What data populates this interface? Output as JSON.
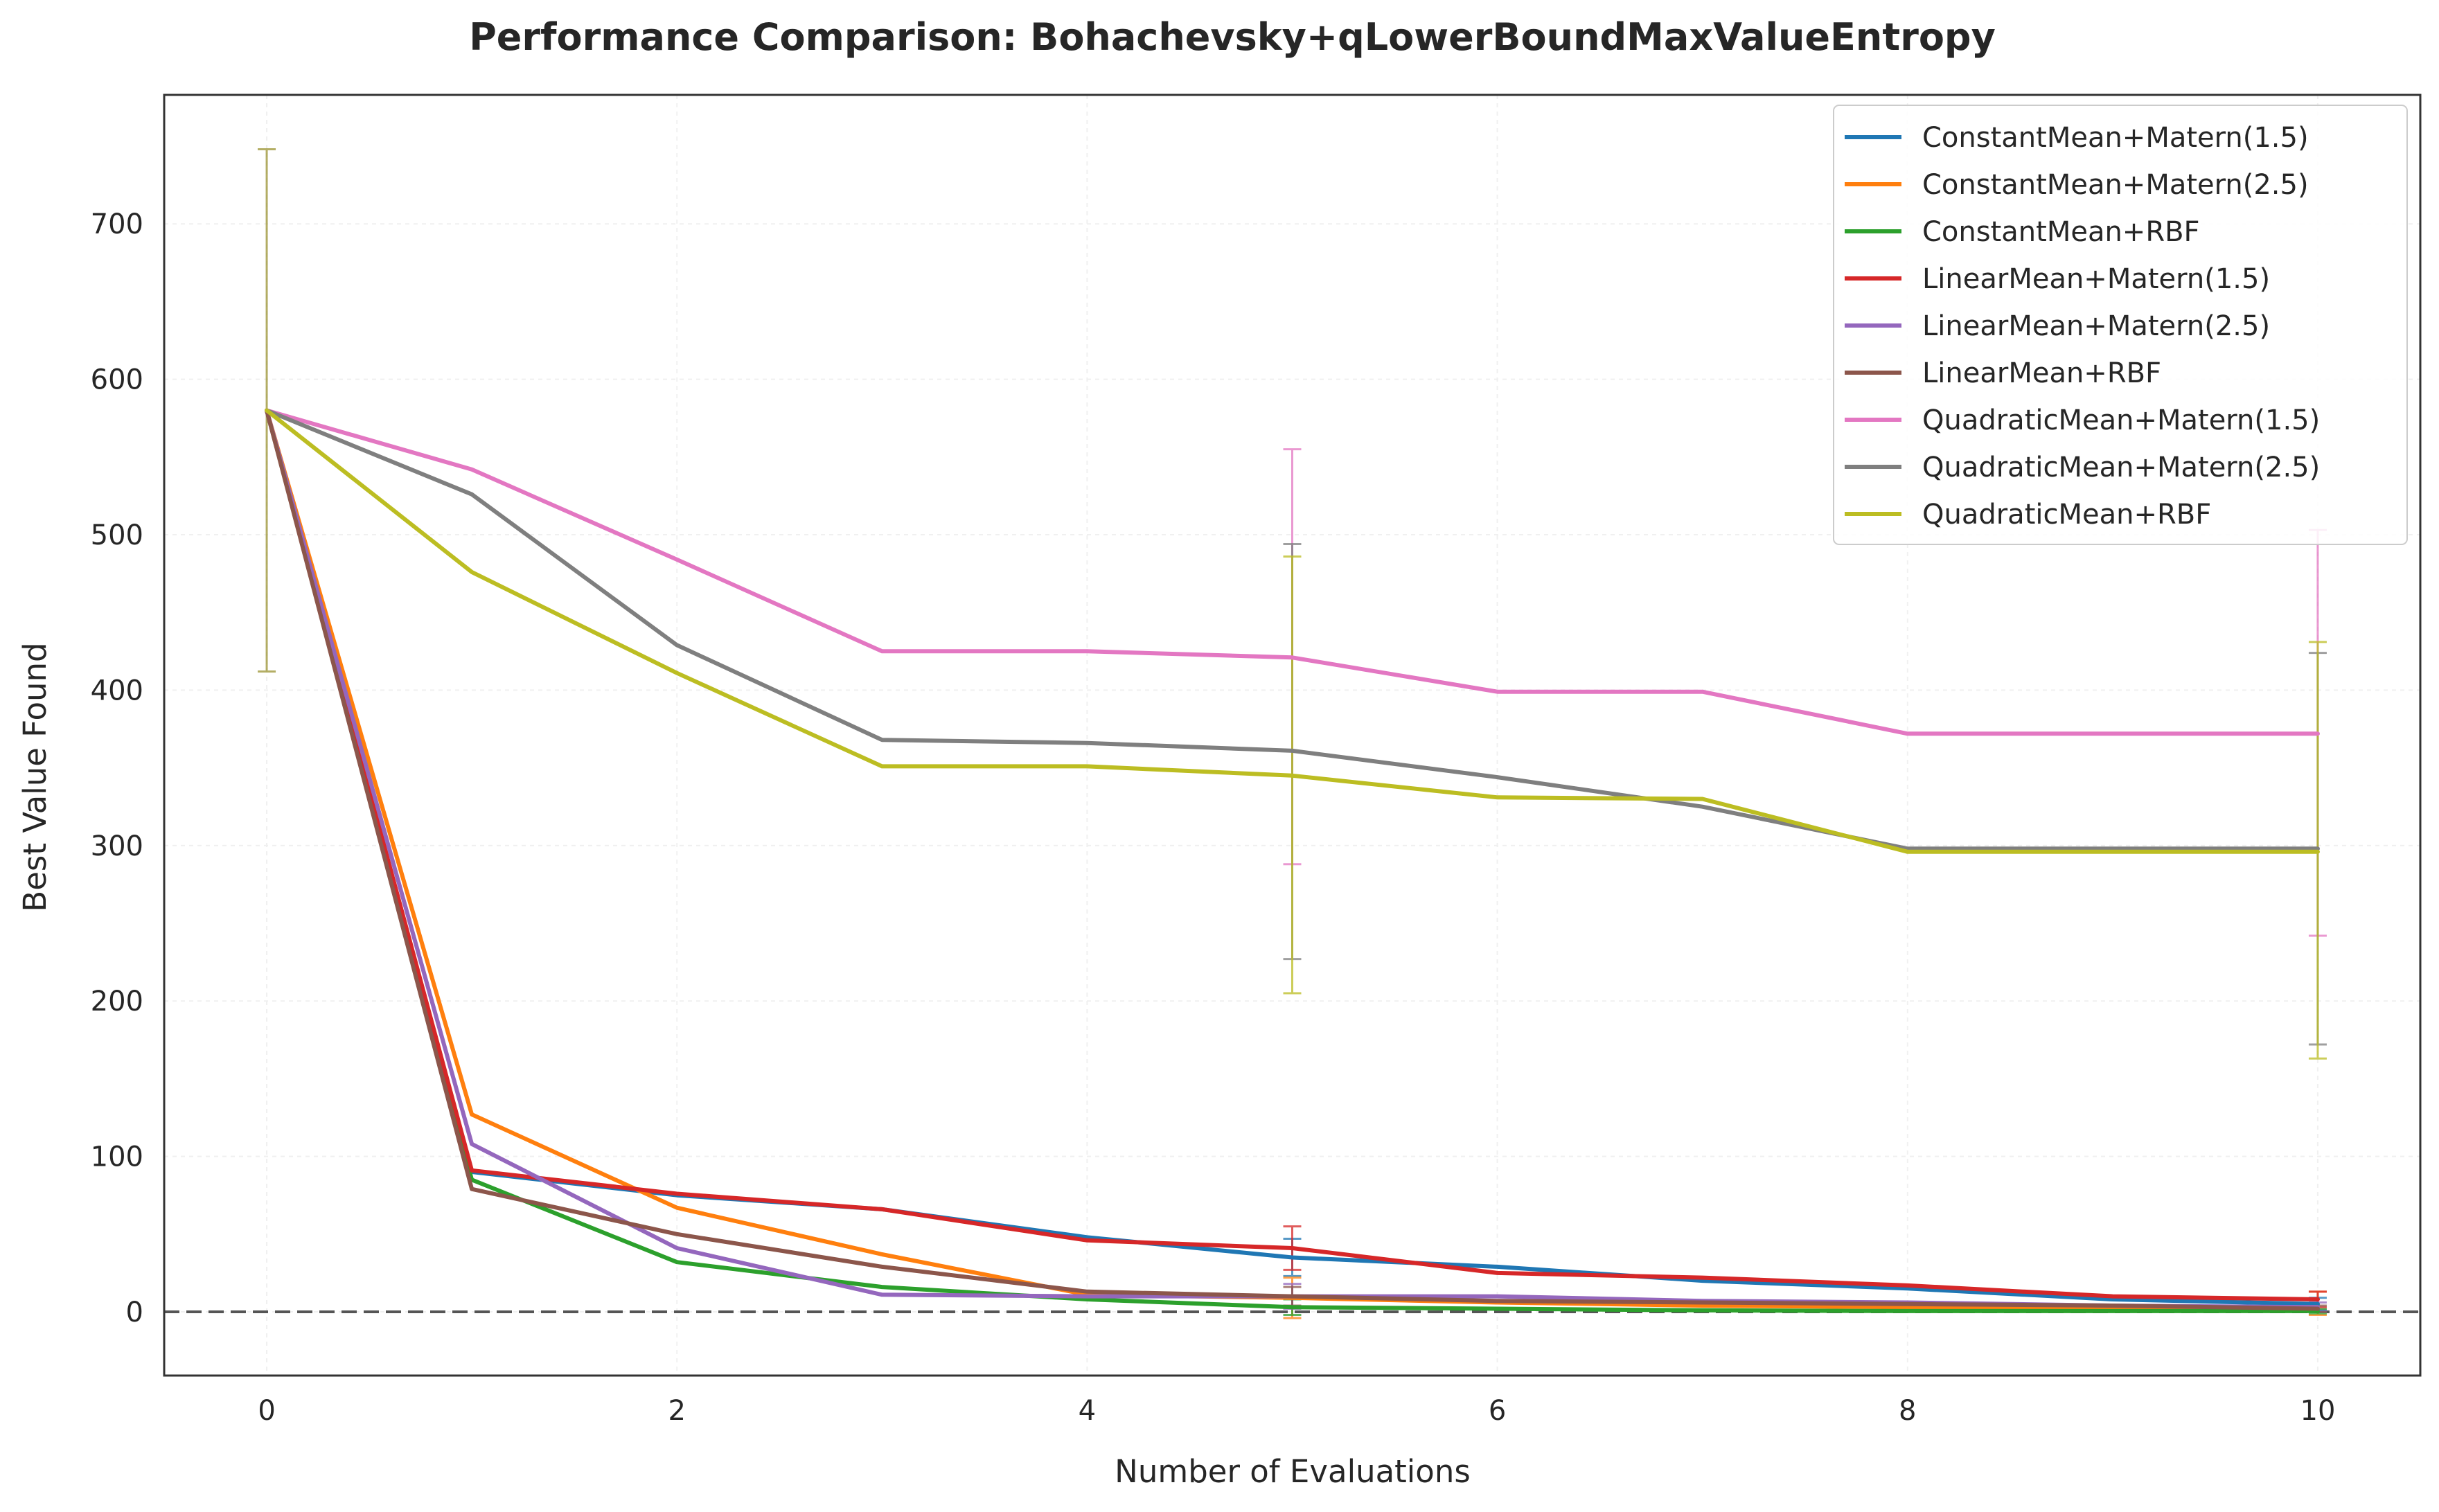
{
  "chart_data": {
    "type": "line",
    "title": "Performance Comparison: Bohachevsky+qLowerBoundMaxValueEntropy",
    "xlabel": "Number of Evaluations",
    "ylabel": "Best Value Found",
    "xlim": [
      -0.5,
      10.5
    ],
    "ylim": [
      -41,
      783
    ],
    "xticks": [
      0,
      2,
      4,
      6,
      8,
      10
    ],
    "yticks": [
      0,
      100,
      200,
      300,
      400,
      500,
      600,
      700
    ],
    "grid": true,
    "legend_position": "top-right",
    "reference_line": {
      "y": 0,
      "style": "dashed",
      "color": "#555555"
    },
    "x": [
      0,
      1,
      2,
      3,
      4,
      5,
      6,
      7,
      8,
      9,
      10
    ],
    "series": [
      {
        "name": "ConstantMean+Matern(1.5)",
        "color": "#1f77b4",
        "values": [
          580,
          90,
          75,
          66,
          48,
          35,
          29,
          20,
          15,
          8,
          5
        ],
        "error_bars": [
          {
            "x": 5,
            "low": 23,
            "high": 47
          },
          {
            "x": 10,
            "low": 1,
            "high": 9
          }
        ]
      },
      {
        "name": "ConstantMean+Matern(2.5)",
        "color": "#ff7f0e",
        "values": [
          580,
          127,
          67,
          37,
          11,
          9,
          6,
          4,
          3,
          3,
          3
        ],
        "error_bars": [
          {
            "x": 5,
            "low": -4,
            "high": 22
          },
          {
            "x": 10,
            "low": -2,
            "high": 13
          }
        ]
      },
      {
        "name": "ConstantMean+RBF",
        "color": "#2ca02c",
        "values": [
          580,
          85,
          32,
          16,
          8,
          3,
          2,
          1,
          0.5,
          0.5,
          0.5
        ],
        "error_bars": [
          {
            "x": 5,
            "low": -2,
            "high": 8
          },
          {
            "x": 10,
            "low": -1,
            "high": 2
          }
        ]
      },
      {
        "name": "LinearMean+Matern(1.5)",
        "color": "#d62728",
        "values": [
          580,
          91,
          76,
          66,
          46,
          41,
          25,
          22,
          17,
          10,
          8
        ],
        "error_bars": [
          {
            "x": 5,
            "low": 27,
            "high": 55
          },
          {
            "x": 10,
            "low": 3,
            "high": 13
          }
        ]
      },
      {
        "name": "LinearMean+Matern(2.5)",
        "color": "#9467bd",
        "values": [
          580,
          108,
          41,
          11,
          10,
          10,
          10,
          7,
          6,
          4,
          3
        ],
        "error_bars": [
          {
            "x": 5,
            "low": 2,
            "high": 18
          },
          {
            "x": 10,
            "low": 0,
            "high": 6
          }
        ]
      },
      {
        "name": "LinearMean+RBF",
        "color": "#8c564b",
        "values": [
          580,
          79,
          50,
          29,
          13,
          10,
          7,
          6,
          5,
          4,
          2
        ],
        "error_bars": [
          {
            "x": 5,
            "low": 4,
            "high": 16
          },
          {
            "x": 10,
            "low": 0,
            "high": 4
          }
        ]
      },
      {
        "name": "QuadraticMean+Matern(1.5)",
        "color": "#e377c2",
        "values": [
          580,
          542,
          484,
          425,
          425,
          421,
          399,
          399,
          372,
          372,
          372
        ],
        "error_bars": [
          {
            "x": 5,
            "low": 288,
            "high": 555
          },
          {
            "x": 10,
            "low": 242,
            "high": 503
          }
        ]
      },
      {
        "name": "QuadraticMean+Matern(2.5)",
        "color": "#7f7f7f",
        "values": [
          580,
          526,
          429,
          368,
          366,
          361,
          344,
          325,
          298,
          298,
          298
        ],
        "error_bars": [
          {
            "x": 5,
            "low": 227,
            "high": 494
          },
          {
            "x": 10,
            "low": 172,
            "high": 424
          }
        ]
      },
      {
        "name": "QuadraticMean+RBF",
        "color": "#bcbd22",
        "values": [
          580,
          476,
          411,
          351,
          351,
          345,
          331,
          330,
          296,
          296,
          296
        ],
        "error_bars": [
          {
            "x": 5,
            "low": 205,
            "high": 486
          },
          {
            "x": 10,
            "low": 163,
            "high": 431
          }
        ]
      }
    ],
    "initial_error_bar": {
      "x": 0,
      "low": 412,
      "high": 748,
      "color": "#9b9432"
    }
  }
}
